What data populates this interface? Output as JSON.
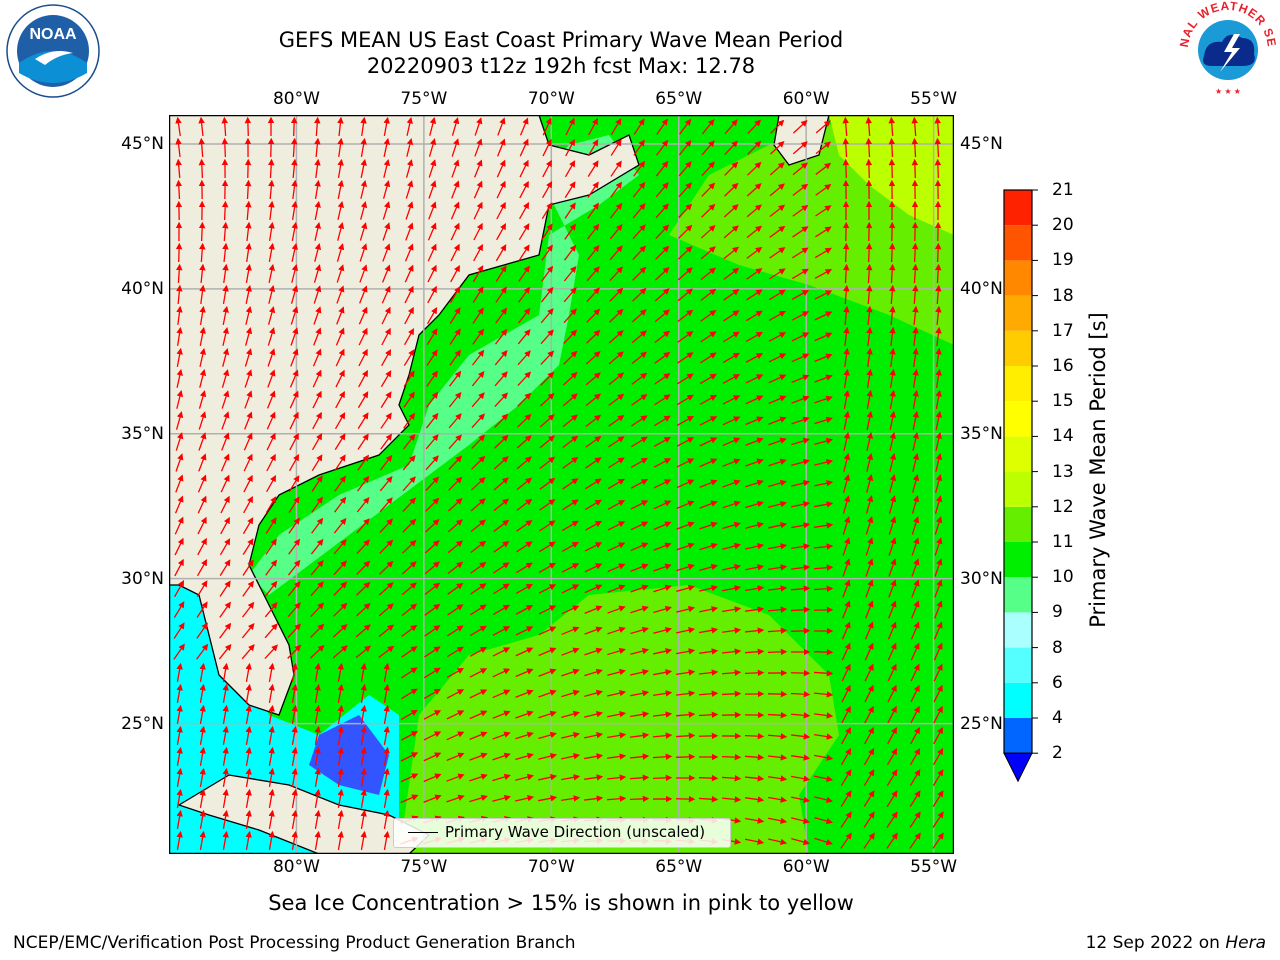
{
  "title": {
    "line1": "GEFS MEAN US East Coast Primary Wave Mean Period",
    "line2": "20220903 t12z 192h fcst   Max: 12.78"
  },
  "map": {
    "region": "US East Coast / Western North Atlantic",
    "lon_range": [
      -85,
      -54.2
    ],
    "lat_range": [
      20.5,
      46
    ],
    "lon_ticks": [
      {
        "value": -80,
        "label": "80°W"
      },
      {
        "value": -75,
        "label": "75°W"
      },
      {
        "value": -70,
        "label": "70°W"
      },
      {
        "value": -65,
        "label": "65°W"
      },
      {
        "value": -60,
        "label": "60°W"
      },
      {
        "value": -55,
        "label": "55°W"
      }
    ],
    "lat_ticks": [
      {
        "value": 45,
        "label": "45°N"
      },
      {
        "value": 40,
        "label": "40°N"
      },
      {
        "value": 35,
        "label": "35°N"
      },
      {
        "value": 30,
        "label": "30°N"
      },
      {
        "value": 25,
        "label": "25°N"
      }
    ],
    "gridlines": true,
    "land_color": "#efedde",
    "coastline_color": "#000000",
    "vector_color": "#ff0000",
    "legend": {
      "entry": "Primary Wave Direction (unscaled)",
      "placement": "lower-center"
    }
  },
  "colorbar": {
    "title": "Primary Wave Mean Period [s]",
    "bounds": [
      2,
      4,
      6,
      8,
      9,
      10,
      11,
      12,
      13,
      14,
      15,
      16,
      17,
      18,
      19,
      20,
      21
    ],
    "colors": [
      "#0066ff",
      "#00ffff",
      "#55ffff",
      "#aaffff",
      "#55ff88",
      "#00ee00",
      "#66ee00",
      "#bbff00",
      "#ddff00",
      "#ffff00",
      "#ffee00",
      "#ffcc00",
      "#ffaa00",
      "#ff8800",
      "#ff5500",
      "#ff2200"
    ],
    "under_color": "#0000ff",
    "top_color": "#ff0000"
  },
  "note": "Sea Ice Concentration > 15% is shown in pink to yellow",
  "footer": {
    "left": "NCEP/EMC/Verification Post Processing Product Generation Branch",
    "date": "12 Sep 2022 on ",
    "host": "Hera"
  },
  "logos": {
    "left": "NOAA",
    "right": "NATIONAL WEATHER SERVICE"
  }
}
